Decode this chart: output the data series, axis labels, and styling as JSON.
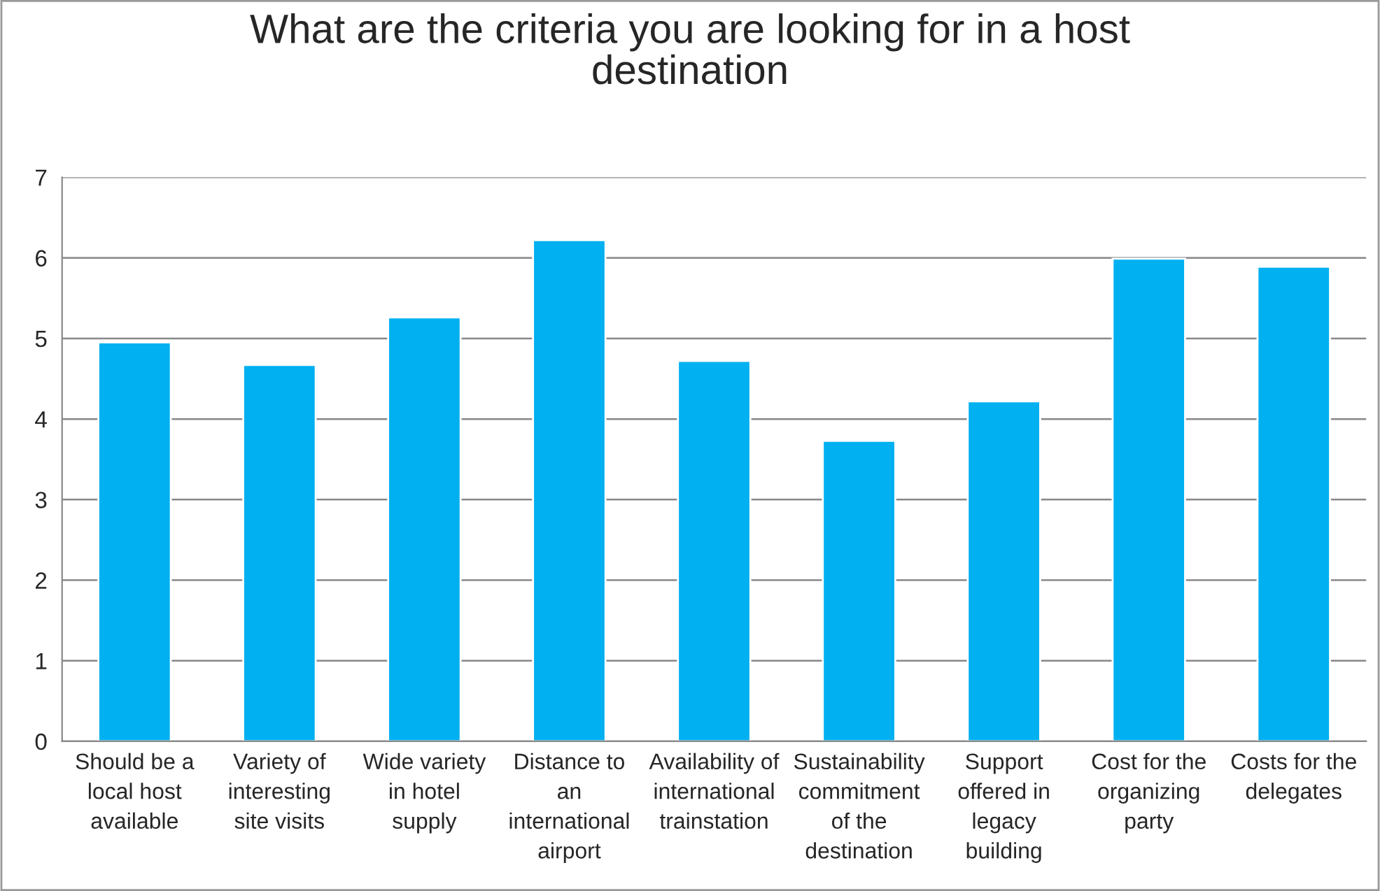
{
  "chart_data": {
    "type": "bar",
    "title": "What are the criteria you are looking for in a host\ndestination",
    "categories": [
      "Should be a\nlocal host\navailable",
      "Variety of\ninteresting\nsite visits",
      "Wide variety\nin hotel\nsupply",
      "Distance to\nan\ninternational\nairport",
      "Availability of\ninternational\ntrainstation",
      "Sustainability\ncommitment\nof the\ndestination",
      "Support\noffered in\nlegacy\nbuilding",
      "Cost for the\norganizing\nparty",
      "Costs for the\ndelegates"
    ],
    "values": [
      4.95,
      4.67,
      5.26,
      6.22,
      4.72,
      3.73,
      4.22,
      5.99,
      5.89
    ],
    "color": "#00b0f0",
    "ylim": [
      0,
      7
    ],
    "yticks": [
      0,
      1,
      2,
      3,
      4,
      5,
      6,
      7
    ],
    "grid": "y"
  }
}
